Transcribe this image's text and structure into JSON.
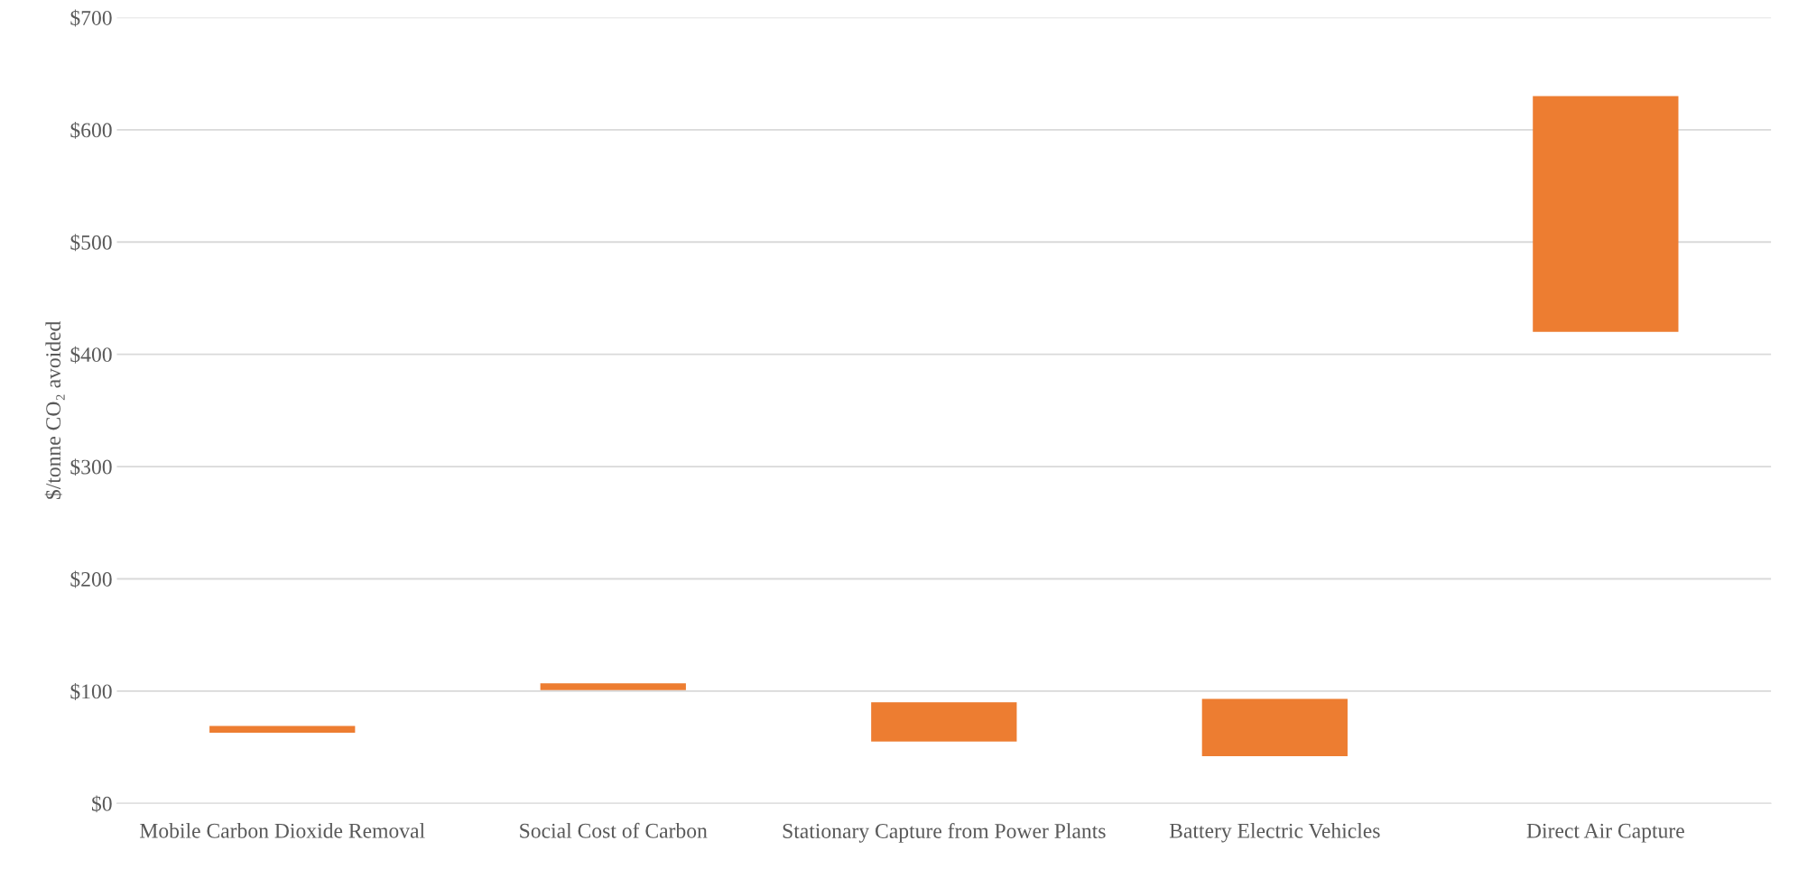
{
  "chart_data": {
    "type": "bar",
    "ylabel": "$/tonne CO₂ avoided",
    "categories": [
      "Mobile Carbon Dioxide Removal",
      "Social Cost of Carbon",
      "Stationary Capture from Power Plants",
      "Battery Electric Vehicles",
      "Direct Air Capture"
    ],
    "base": [
      63,
      101,
      55,
      42,
      420
    ],
    "values": [
      6,
      6,
      35,
      51,
      210
    ],
    "color": "#ed7d31",
    "ylim": [
      0,
      700
    ],
    "yticks": [
      {
        "value": 0,
        "label": "$0"
      },
      {
        "value": 100,
        "label": "$100"
      },
      {
        "value": 200,
        "label": "$200"
      },
      {
        "value": 300,
        "label": "$300"
      },
      {
        "value": 400,
        "label": "$400"
      },
      {
        "value": 500,
        "label": "$500"
      },
      {
        "value": 600,
        "label": "$600"
      },
      {
        "value": 700,
        "label": "$700"
      }
    ],
    "grid": "y"
  }
}
